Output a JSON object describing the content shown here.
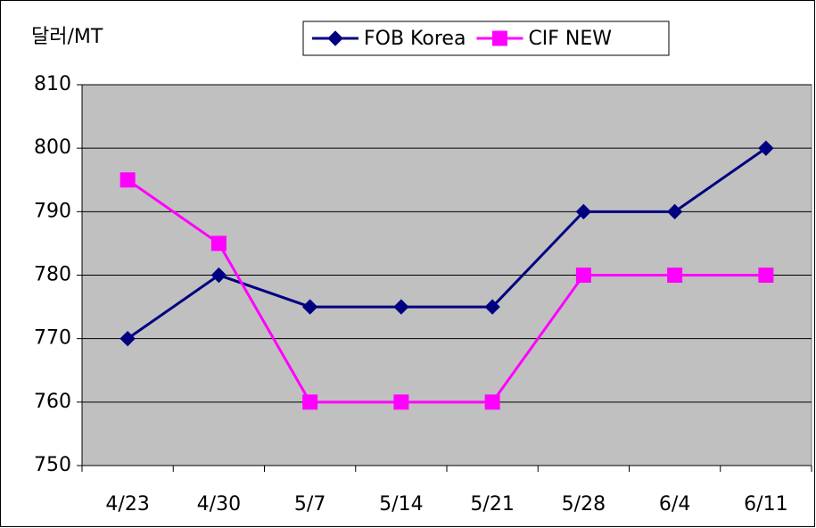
{
  "chart_data": {
    "type": "line",
    "y_label": "달러/MT",
    "categories": [
      "4/23",
      "4/30",
      "5/7",
      "5/14",
      "5/21",
      "5/28",
      "6/4",
      "6/11"
    ],
    "series": [
      {
        "name": "FOB Korea",
        "color": "#000080",
        "marker": "diamond",
        "values": [
          770,
          780,
          775,
          775,
          775,
          790,
          790,
          800
        ]
      },
      {
        "name": "CIF NEW",
        "color": "#ff00ff",
        "marker": "square",
        "values": [
          795,
          785,
          760,
          760,
          760,
          780,
          780,
          780
        ]
      }
    ],
    "ylim": [
      750,
      810
    ],
    "yticks": [
      750,
      760,
      770,
      780,
      790,
      800,
      810
    ],
    "grid": true,
    "plot_background": "#c0c0c0"
  }
}
